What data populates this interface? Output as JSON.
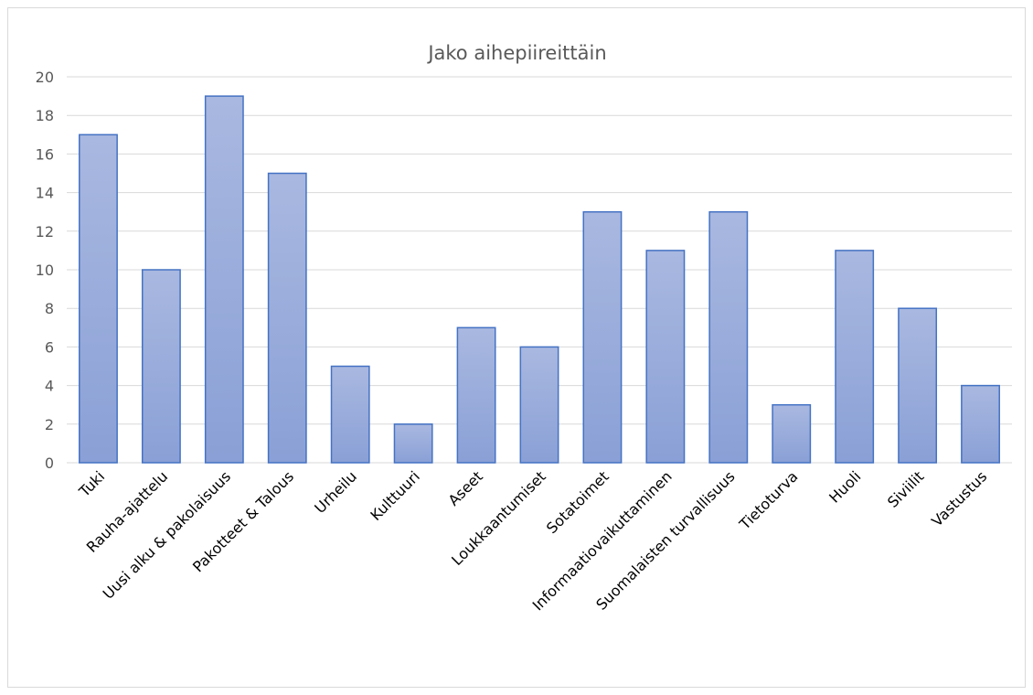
{
  "chart_data": {
    "type": "bar",
    "title": "Jako aihepiireittäin",
    "categories": [
      "Tuki",
      "Rauha-ajattelu",
      "Uusi alku & pakolaisuus",
      "Pakotteet & Talous",
      "Urheilu",
      "Kulttuuri",
      "Aseet",
      "Loukkaantumiset",
      "Sotatoimet",
      "Informaatiovaikuttaminen",
      "Suomalaisten turvallisuus",
      "Tietoturva",
      "Huoli",
      "Siviilit",
      "Vastustus"
    ],
    "values": [
      17,
      10,
      19,
      15,
      5,
      2,
      7,
      6,
      13,
      11,
      13,
      3,
      11,
      8,
      4
    ],
    "ylim": [
      0,
      20
    ],
    "yticks": [
      "0",
      "2",
      "4",
      "6",
      "8",
      "10",
      "12",
      "14",
      "16",
      "18",
      "20"
    ],
    "grid": true,
    "legend": "none",
    "colors": {
      "bar_top": "#a9b8e0",
      "bar_bottom": "#8aa0d6",
      "bar_border": "#4472c4",
      "gridline": "#d9d9d9",
      "text": "#595959"
    }
  }
}
